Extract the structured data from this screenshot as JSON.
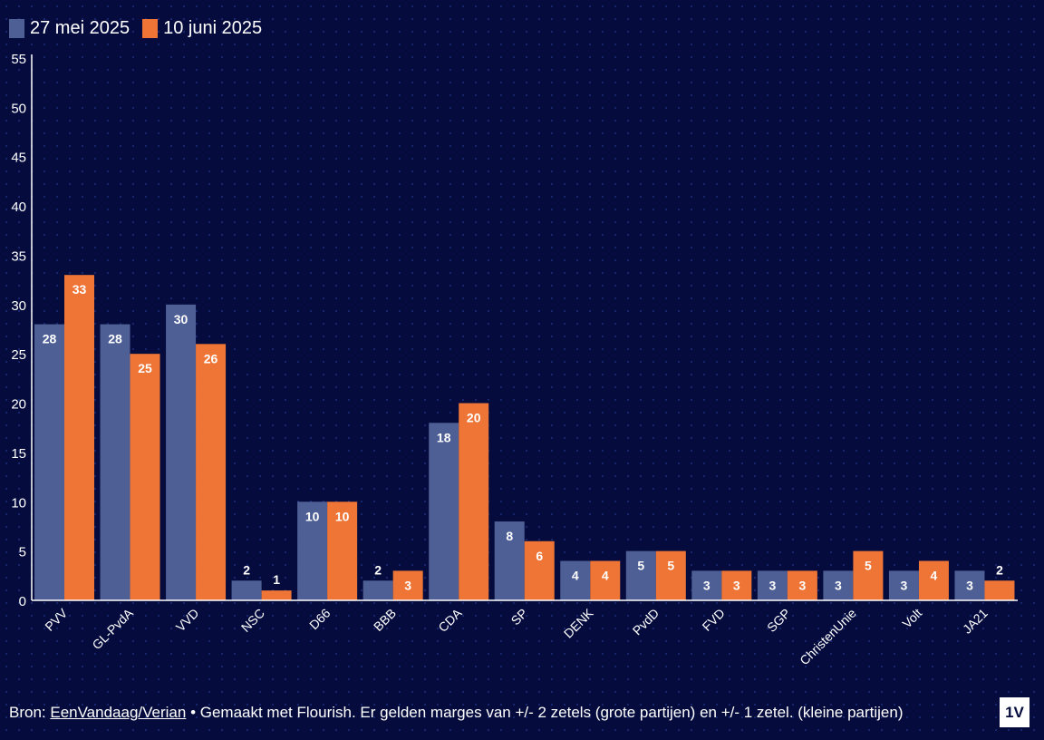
{
  "colors": {
    "series_1": "#4e5f95",
    "series_2": "#ee7536",
    "background": "#050c3d"
  },
  "chart_data": {
    "type": "bar",
    "categories": [
      "PVV",
      "GL-PvdA",
      "VVD",
      "NSC",
      "D66",
      "BBB",
      "CDA",
      "SP",
      "DENK",
      "PvdD",
      "FVD",
      "SGP",
      "ChristenUnie",
      "Volt",
      "JA21"
    ],
    "series": [
      {
        "name": "27 mei 2025",
        "values": [
          28,
          28,
          30,
          2,
          10,
          2,
          18,
          8,
          4,
          5,
          3,
          3,
          3,
          3,
          3
        ]
      },
      {
        "name": "10 juni 2025",
        "values": [
          33,
          25,
          26,
          1,
          10,
          3,
          20,
          6,
          4,
          5,
          3,
          3,
          5,
          4,
          2
        ]
      }
    ],
    "title": "",
    "xlabel": "",
    "ylabel": "",
    "ylim": [
      0,
      55
    ],
    "yticks": [
      0,
      5,
      10,
      15,
      20,
      25,
      30,
      35,
      40,
      45,
      50,
      55
    ],
    "grid": false,
    "legend": "top-left"
  },
  "footer": {
    "prefix": "Bron: ",
    "link_text": "EenVandaag/Verian",
    "suffix": " • Gemaakt met Flourish. Er gelden marges van +/- 2 zetels (grote partijen) en +/- 1 zetel. (kleine partijen)"
  },
  "logo": {
    "text": "1V"
  }
}
